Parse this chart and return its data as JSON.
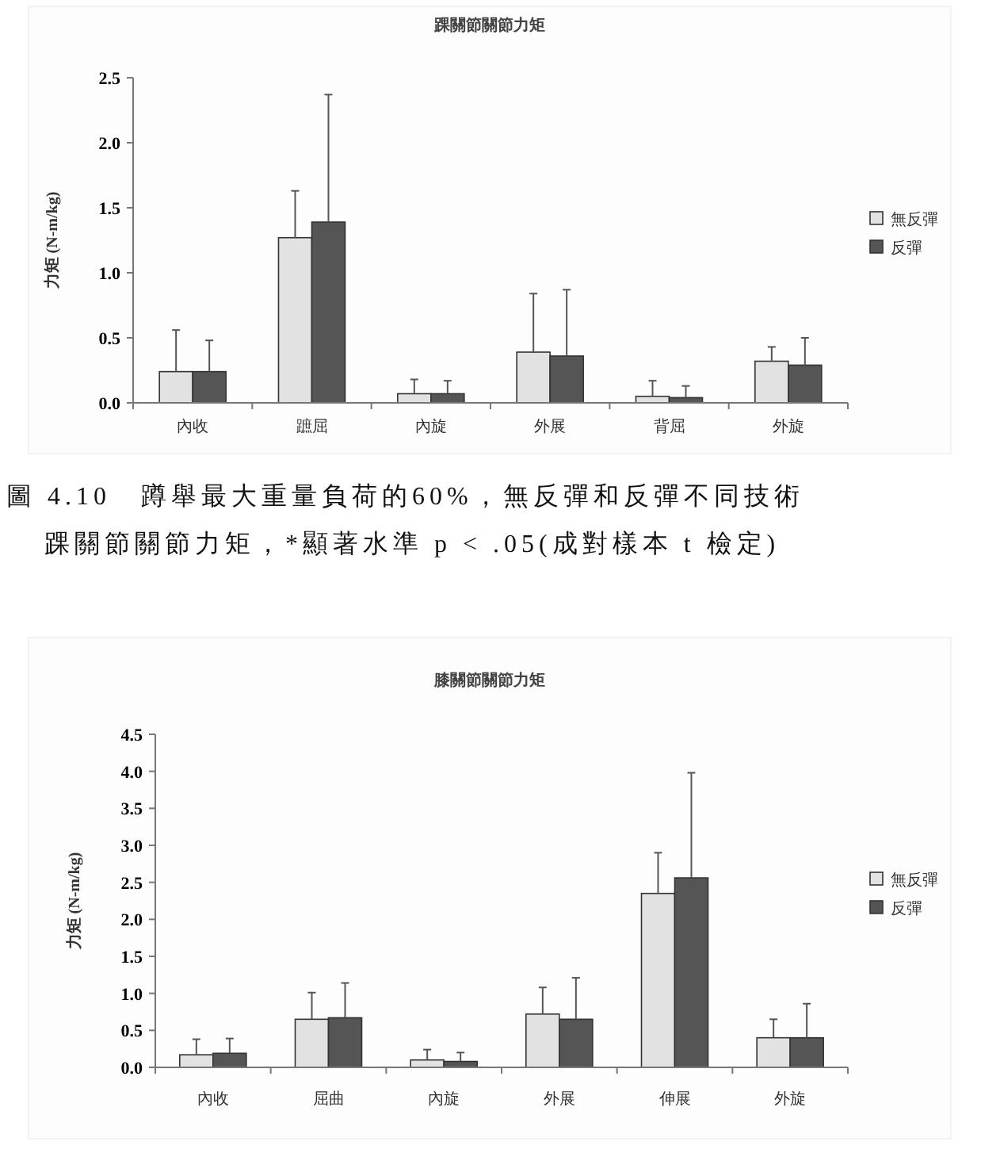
{
  "chart_data": [
    {
      "type": "bar",
      "title": "踝關節關節力矩",
      "ylabel": "力矩 (N-m/kg)",
      "categories": [
        "內收",
        "蹠屈",
        "內旋",
        "外展",
        "背屈",
        "外旋"
      ],
      "series": [
        {
          "name": "無反彈",
          "color": "#e2e2e2",
          "values": [
            0.24,
            1.27,
            0.07,
            0.39,
            0.05,
            0.32
          ],
          "errors": [
            [
              0.24,
              0.56
            ],
            [
              1.27,
              1.63
            ],
            [
              0.07,
              0.18
            ],
            [
              0.39,
              0.84
            ],
            [
              0.05,
              0.17
            ],
            [
              0.32,
              0.43
            ]
          ]
        },
        {
          "name": "反彈",
          "color": "#555555",
          "values": [
            0.24,
            1.39,
            0.07,
            0.36,
            0.04,
            0.29
          ],
          "errors": [
            [
              0.24,
              0.48
            ],
            [
              1.39,
              2.37
            ],
            [
              0.07,
              0.17
            ],
            [
              0.36,
              0.87
            ],
            [
              0.04,
              0.13
            ],
            [
              0.29,
              0.5
            ]
          ]
        }
      ],
      "ylim": [
        0,
        2.5
      ],
      "yticks": [
        {
          "value": 0,
          "label": "0.0"
        },
        0.5,
        {
          "value": 1,
          "label": "1.0"
        },
        1.5,
        {
          "value": 2,
          "label": "2.0"
        },
        2.5
      ],
      "legend": "right",
      "annotations": [
        "圖 4.10　蹲舉最大重量負荷的60%，無反彈和反彈不同技術",
        "踝關節關節力矩，*顯著水準 p < .05(成對樣本 t 檢定)"
      ]
    },
    {
      "type": "bar",
      "title": "膝關節關節力矩",
      "ylabel": "力矩 (N-m/kg)",
      "categories": [
        "內收",
        "屈曲",
        "內旋",
        "外展",
        "伸展",
        "外旋"
      ],
      "series": [
        {
          "name": "無反彈",
          "color": "#e2e2e2",
          "values": [
            0.17,
            0.65,
            0.1,
            0.72,
            2.35,
            0.4
          ],
          "errors": [
            [
              0.17,
              0.38
            ],
            [
              0.65,
              1.01
            ],
            [
              0.1,
              0.24
            ],
            [
              0.72,
              1.08
            ],
            [
              2.35,
              2.9
            ],
            [
              0.4,
              0.65
            ]
          ]
        },
        {
          "name": "反彈",
          "color": "#555555",
          "values": [
            0.19,
            0.67,
            0.08,
            0.65,
            2.56,
            0.4
          ],
          "errors": [
            [
              0.19,
              0.39
            ],
            [
              0.67,
              1.14
            ],
            [
              0.08,
              0.2
            ],
            [
              0.65,
              1.21
            ],
            [
              2.56,
              3.98
            ],
            [
              0.4,
              0.86
            ]
          ]
        }
      ],
      "ylim": [
        0,
        4.5
      ],
      "yticks": [
        {
          "value": 0,
          "label": "0.0"
        },
        0.5,
        {
          "value": 1,
          "label": "1.0"
        },
        1.5,
        {
          "value": 2,
          "label": "2.0"
        },
        2.5,
        {
          "value": 3,
          "label": "3.0"
        },
        3.5,
        {
          "value": 4,
          "label": "4.0"
        },
        4.5
      ],
      "legend": "right"
    }
  ]
}
